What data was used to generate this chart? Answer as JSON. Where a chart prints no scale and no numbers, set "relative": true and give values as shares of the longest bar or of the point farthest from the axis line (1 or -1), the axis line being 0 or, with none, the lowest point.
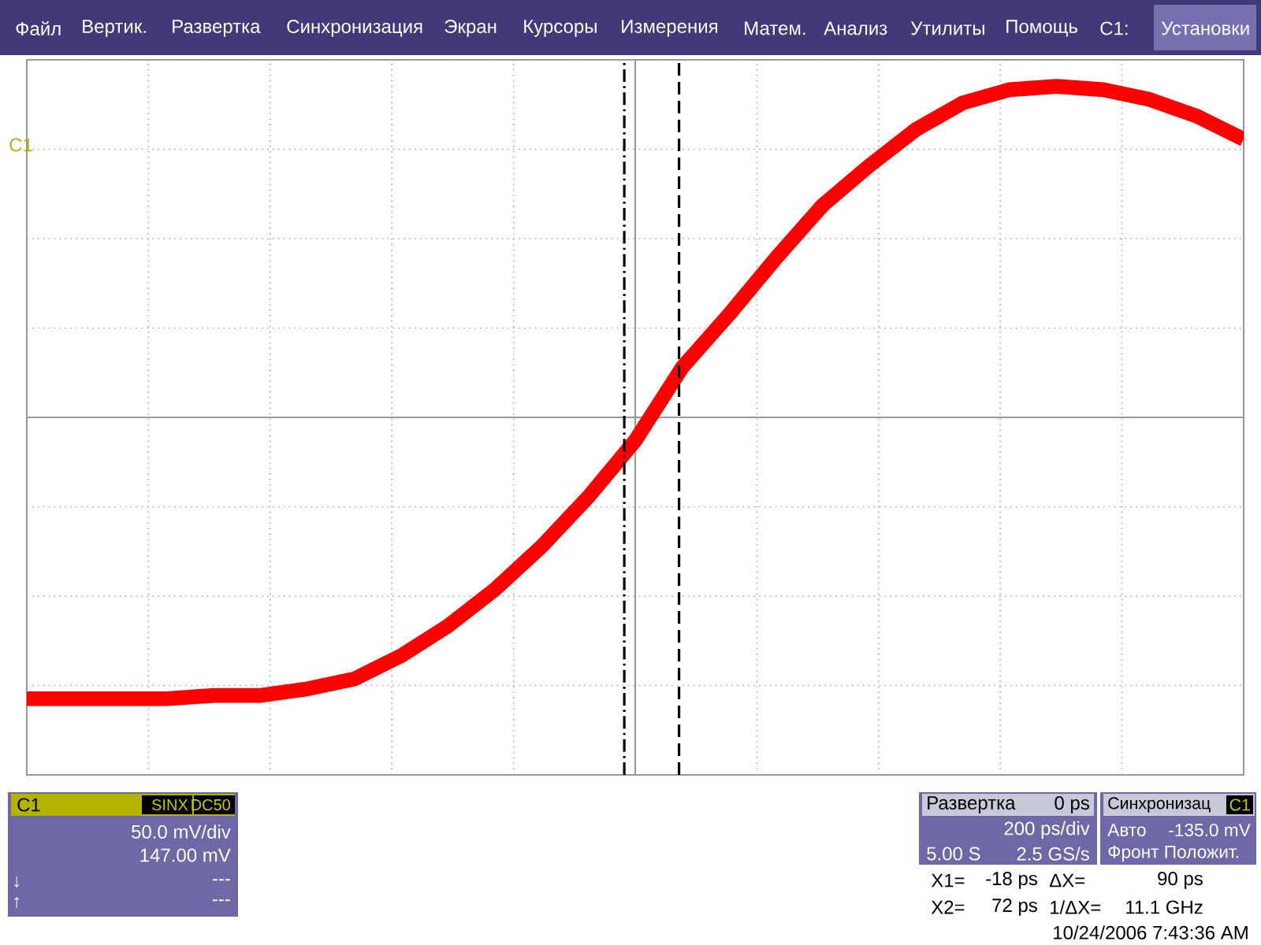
{
  "chart_data": {
    "type": "line",
    "relative": true,
    "grid": true,
    "categories": [
      null,
      null,
      null,
      null,
      null,
      null,
      null,
      null,
      null,
      null,
      null,
      null,
      null,
      null,
      null,
      null,
      null,
      null,
      null,
      null,
      null,
      null,
      null,
      null,
      null,
      null,
      null
    ],
    "series": [
      {
        "color": "#ff0000",
        "values": [
          -0.85,
          -0.85,
          -0.85,
          -0.85,
          -0.84,
          -0.84,
          -0.82,
          -0.79,
          -0.72,
          -0.63,
          -0.52,
          -0.39,
          -0.24,
          -0.07,
          0.15,
          0.31,
          0.48,
          0.64,
          0.76,
          0.87,
          0.95,
          0.99,
          1.0,
          0.99,
          0.96,
          0.91,
          0.84
        ]
      }
    ],
    "annotations": [
      "Файл",
      "Вертик.",
      "Развертка",
      "Синхронизация",
      "Экран",
      "Курсоры",
      "Измерения",
      "Матем.",
      "Анализ",
      "Утилиты",
      "Помощь",
      "C1:",
      "Установки",
      "C1",
      "C1",
      "SINX",
      "DC50",
      "50.0 mV/div",
      "147.00 mV",
      "↓",
      "---",
      "↑",
      "---",
      "Развертка",
      "0 ps",
      "200 ps/div",
      "5.00 S",
      "2.5 GS/s",
      "Синхронизац",
      "C1",
      "Авто",
      "-135.0 mV",
      "Фронт Положит.",
      "X1=",
      "-18 ps",
      "ΔX=",
      "90 ps",
      "X2=",
      "72 ps",
      "1/ΔX=",
      "11.1 GHz",
      "10/24/2006 7:43:36 AM"
    ]
  }
}
